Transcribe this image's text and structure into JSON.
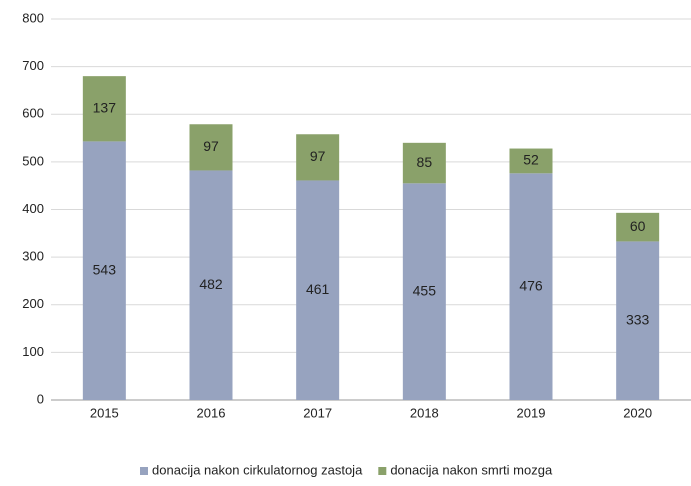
{
  "chart_data": {
    "type": "stacked_bar",
    "categories": [
      "2015",
      "2016",
      "2017",
      "2018",
      "2019",
      "2020"
    ],
    "series": [
      {
        "name": "donacija nakon cirkulatornog zastoja",
        "color": "#97a3bf",
        "values": [
          543,
          482,
          461,
          455,
          476,
          333
        ]
      },
      {
        "name": "donacija nakon smrti mozga",
        "color": "#8aa16a",
        "values": [
          137,
          97,
          97,
          85,
          52,
          60
        ]
      }
    ],
    "ylim": [
      0,
      800
    ],
    "yticks": [
      0,
      100,
      200,
      300,
      400,
      500,
      600,
      700,
      800
    ],
    "grid": true,
    "legend": "bottom"
  }
}
